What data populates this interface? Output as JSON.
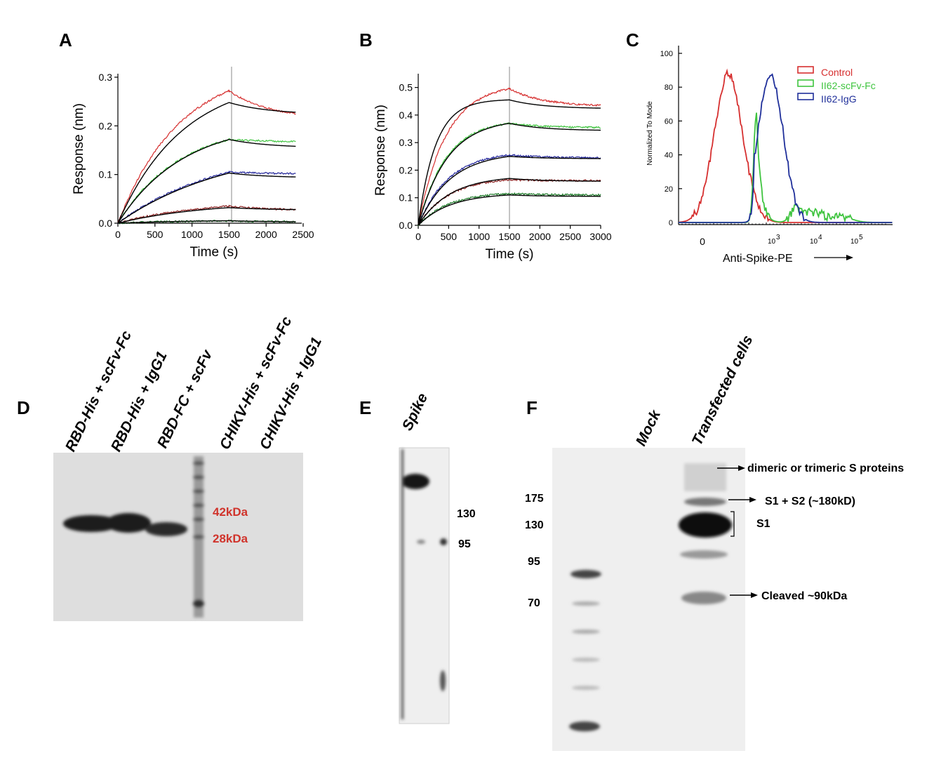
{
  "figure": {
    "panels": {
      "A": "A",
      "B": "B",
      "C": "C",
      "D": "D",
      "E": "E",
      "F": "F"
    }
  },
  "chart_data": [
    {
      "panel": "A",
      "type": "line",
      "xlabel": "Time (s)",
      "ylabel": "Response (nm)",
      "xlim": [
        0,
        2500
      ],
      "ylim": [
        0,
        0.3
      ],
      "xticks": [
        "0",
        "500",
        "1000",
        "1500",
        "2000",
        "2500"
      ],
      "yticks": [
        "0.0",
        "0.1",
        "0.2",
        "0.3"
      ],
      "association_end": 1500,
      "x_end": 2400,
      "grid": false,
      "series": [
        {
          "color": "#d62f2f",
          "plateau": 0.272,
          "dissoc_end": 0.225,
          "k": 0.0012
        },
        {
          "color": "#3fc43f",
          "plateau": 0.172,
          "dissoc_end": 0.168,
          "k": 0.0012
        },
        {
          "color": "#22259a",
          "plateau": 0.105,
          "dissoc_end": 0.102,
          "k": 0.0007
        },
        {
          "color": "#8b2222",
          "plateau": 0.035,
          "dissoc_end": 0.028,
          "k": 0.0009
        },
        {
          "color": "#1f7a2a",
          "plateau": 0.005,
          "dissoc_end": 0.003,
          "k": 0.001
        }
      ],
      "fits": [
        {
          "plateau": 0.248,
          "dissoc_end": 0.228
        },
        {
          "plateau": 0.172,
          "dissoc_end": 0.158
        },
        {
          "plateau": 0.103,
          "dissoc_end": 0.095
        },
        {
          "plateau": 0.032,
          "dissoc_end": 0.028
        },
        {
          "plateau": 0.005,
          "dissoc_end": 0.003
        }
      ]
    },
    {
      "panel": "B",
      "type": "line",
      "xlabel": "Time (s)",
      "ylabel": "Response (nm)",
      "xlim": [
        0,
        3000
      ],
      "ylim": [
        0,
        0.55
      ],
      "xticks": [
        "0",
        "500",
        "1000",
        "1500",
        "2000",
        "2500",
        "3000"
      ],
      "yticks": [
        "0.0",
        "0.1",
        "0.2",
        "0.3",
        "0.4",
        "0.5"
      ],
      "association_end": 1500,
      "grid": false,
      "series": [
        {
          "color": "#d62f2f",
          "plateau": 0.495,
          "dissoc_end": 0.435,
          "k": 0.0022
        },
        {
          "color": "#3fc43f",
          "plateau": 0.37,
          "dissoc_end": 0.355,
          "k": 0.0022
        },
        {
          "color": "#22259a",
          "plateau": 0.255,
          "dissoc_end": 0.245,
          "k": 0.002
        },
        {
          "color": "#8b2222",
          "plateau": 0.165,
          "dissoc_end": 0.162,
          "k": 0.002
        },
        {
          "color": "#1f7a2a",
          "plateau": 0.115,
          "dissoc_end": 0.11,
          "k": 0.002
        }
      ],
      "fits": [
        {
          "plateau": 0.455,
          "dissoc_end": 0.425
        },
        {
          "plateau": 0.37,
          "dissoc_end": 0.345
        },
        {
          "plateau": 0.25,
          "dissoc_end": 0.242
        },
        {
          "plateau": 0.17,
          "dissoc_end": 0.16
        },
        {
          "plateau": 0.11,
          "dissoc_end": 0.105
        }
      ]
    },
    {
      "panel": "C",
      "type": "area",
      "xlabel": "Anti-Spike-PE",
      "ylabel": "Normalized To Mode",
      "ylim": [
        0,
        100
      ],
      "yticks": [
        "0",
        "20",
        "40",
        "60",
        "80",
        "100"
      ],
      "xticks": [
        "0",
        "10^3",
        "10^4",
        "10^5"
      ],
      "legend_position": "top-right",
      "series": [
        {
          "name": "Control",
          "color": "#d62f2f"
        },
        {
          "name": "II62-scFv-Fc",
          "color": "#3fc43f"
        },
        {
          "name": "II62-IgG",
          "color": "#1f2f9a"
        }
      ]
    }
  ],
  "panel_d": {
    "lanes": [
      "RBD-His + scFv-Fc",
      "RBD-His + IgG1",
      "RBD-FC + scFv",
      "CHIKV-His  + scFv-Fc",
      "CHIKV-His  + IgG1"
    ],
    "markers": [
      "42kDa",
      "28kDa"
    ]
  },
  "panel_e": {
    "lane": "Spike",
    "markers": [
      "130",
      "95"
    ]
  },
  "panel_f": {
    "lanes": [
      "Mock",
      "Transfected cells"
    ],
    "markers": [
      "175",
      "130",
      "95",
      "70"
    ],
    "annotations": [
      "dimeric or trimeric S proteins",
      "S1 + S2 (~180kD)",
      "S1",
      "Cleaved ~90kDa"
    ]
  }
}
